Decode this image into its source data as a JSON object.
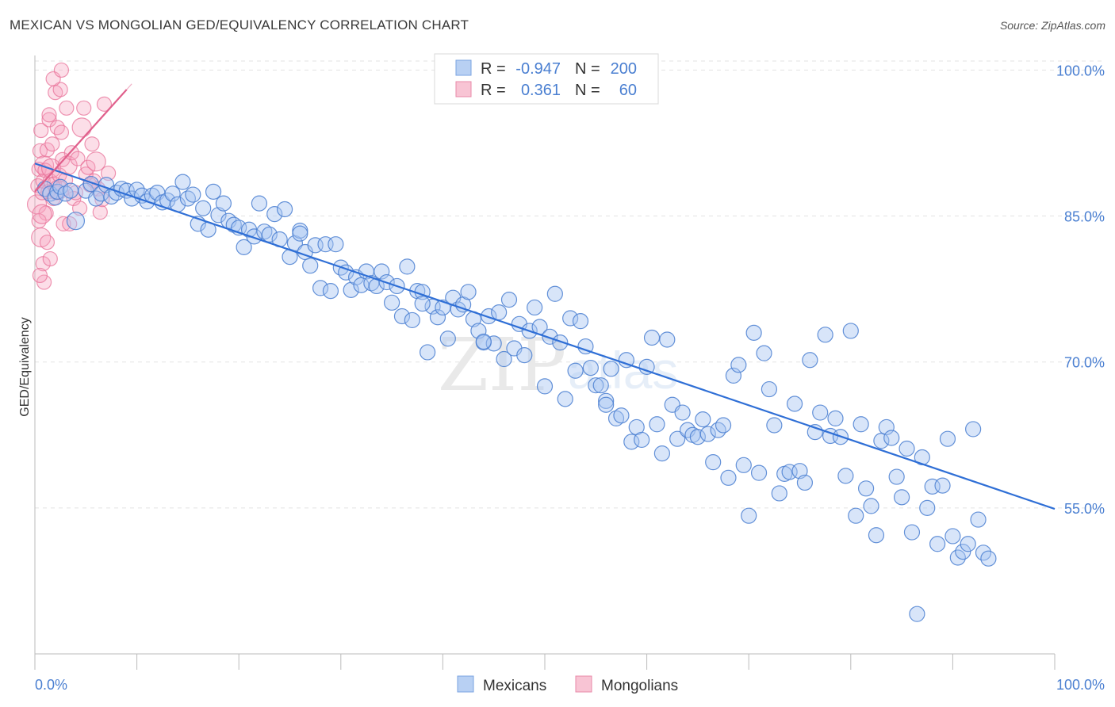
{
  "header": {
    "title": "MEXICAN VS MONGOLIAN GED/EQUIVALENCY CORRELATION CHART",
    "source": "Source: ZipAtlas.com"
  },
  "watermark": {
    "zip": "ZIP",
    "atlas": "atlas"
  },
  "colors": {
    "blue": "#4a7fd1",
    "blue_fill": "#a9c6f2",
    "blue_line": "#2f6fd6",
    "pink": "#e8739a",
    "pink_fill": "#f6b6cb",
    "pink_line": "#e0608c",
    "grid": "#e3e3e3"
  },
  "legend": {
    "rows": [
      {
        "r_label": "R =",
        "r_value": "-0.947",
        "n_label": "N =",
        "n_value": "200"
      },
      {
        "r_label": "R =",
        "r_value": " 0.361",
        "n_label": "N =",
        "n_value": " 60"
      }
    ]
  },
  "bottom_legend": [
    "Mexicans",
    "Mongolians"
  ],
  "chart_data": {
    "type": "scatter",
    "title": "MEXICAN VS MONGOLIAN GED/EQUIVALENCY CORRELATION CHART",
    "xlabel": "",
    "ylabel": "GED/Equivalency",
    "xlim": [
      0,
      100
    ],
    "ylim": [
      40,
      101.5
    ],
    "x_tick_labels": [
      "0.0%",
      "100.0%"
    ],
    "y_ticks": [
      55,
      70,
      85,
      100
    ],
    "y_tick_labels": [
      "55.0%",
      "70.0%",
      "85.0%",
      "100.0%"
    ],
    "grid": true,
    "legend_position": "top-center",
    "series": [
      {
        "name": "Mexicans",
        "r": -0.947,
        "n": 200,
        "trend": {
          "x": [
            0,
            100
          ],
          "y": [
            90.4,
            54.9
          ]
        },
        "points": [
          [
            1,
            87.8
          ],
          [
            1.5,
            87.3
          ],
          [
            2,
            86.9
          ],
          [
            2.2,
            87.5
          ],
          [
            2.5,
            88
          ],
          [
            3,
            87.3
          ],
          [
            3.5,
            87.6
          ],
          [
            4,
            84.5
          ],
          [
            5,
            87.6
          ],
          [
            5.5,
            88.3
          ],
          [
            6,
            86.8
          ],
          [
            6.5,
            87.3
          ],
          [
            7,
            88.2
          ],
          [
            7.5,
            87
          ],
          [
            8,
            87.4
          ],
          [
            8.5,
            87.8
          ],
          [
            9,
            87.6
          ],
          [
            9.5,
            86.8
          ],
          [
            10,
            87.7
          ],
          [
            10.5,
            87.1
          ],
          [
            11,
            86.5
          ],
          [
            11.5,
            87.1
          ],
          [
            12,
            87.4
          ],
          [
            12.5,
            86.4
          ],
          [
            13,
            86.6
          ],
          [
            13.5,
            87.3
          ],
          [
            14,
            86.2
          ],
          [
            14.5,
            88.5
          ],
          [
            15,
            86.8
          ],
          [
            15.5,
            87.2
          ],
          [
            16,
            84.2
          ],
          [
            16.5,
            85.8
          ],
          [
            17,
            83.6
          ],
          [
            17.5,
            87.5
          ],
          [
            18,
            85.1
          ],
          [
            18.5,
            86.3
          ],
          [
            19,
            84.5
          ],
          [
            19.5,
            84.1
          ],
          [
            20,
            83.8
          ],
          [
            20.5,
            81.8
          ],
          [
            21,
            83.6
          ],
          [
            21.5,
            82.9
          ],
          [
            22,
            86.3
          ],
          [
            22.5,
            83.4
          ],
          [
            23,
            83.1
          ],
          [
            23.5,
            85.2
          ],
          [
            24,
            82.6
          ],
          [
            24.5,
            85.7
          ],
          [
            25,
            80.8
          ],
          [
            25.5,
            82.2
          ],
          [
            26,
            83.5
          ],
          [
            26.5,
            81.3
          ],
          [
            27,
            79.9
          ],
          [
            27.5,
            82
          ],
          [
            28,
            77.6
          ],
          [
            28.5,
            82.1
          ],
          [
            29,
            77.3
          ],
          [
            29.5,
            82.1
          ],
          [
            30,
            79.7
          ],
          [
            30.5,
            79.2
          ],
          [
            31,
            77.4
          ],
          [
            31.5,
            78.7
          ],
          [
            32,
            77.9
          ],
          [
            32.5,
            79.3
          ],
          [
            33,
            78.1
          ],
          [
            33.5,
            77.8
          ],
          [
            34,
            79.3
          ],
          [
            34.5,
            78.2
          ],
          [
            35,
            76.1
          ],
          [
            35.5,
            77.8
          ],
          [
            36,
            74.7
          ],
          [
            36.5,
            79.8
          ],
          [
            37,
            74.3
          ],
          [
            37.5,
            77.3
          ],
          [
            38,
            77.2
          ],
          [
            38.5,
            71
          ],
          [
            39,
            75.7
          ],
          [
            39.5,
            74.6
          ],
          [
            40,
            75.6
          ],
          [
            40.5,
            72.4
          ],
          [
            41,
            76.6
          ],
          [
            41.5,
            75.4
          ],
          [
            42,
            75.9
          ],
          [
            42.5,
            77.2
          ],
          [
            43,
            74.4
          ],
          [
            43.5,
            73.2
          ],
          [
            44,
            72
          ],
          [
            44.5,
            74.7
          ],
          [
            45,
            71.9
          ],
          [
            45.5,
            75.1
          ],
          [
            46,
            70.3
          ],
          [
            46.5,
            76.4
          ],
          [
            47,
            71.4
          ],
          [
            47.5,
            73.9
          ],
          [
            48,
            70.7
          ],
          [
            48.5,
            73.2
          ],
          [
            49,
            75.6
          ],
          [
            49.5,
            73.6
          ],
          [
            50,
            67.5
          ],
          [
            50.5,
            72.6
          ],
          [
            51,
            77
          ],
          [
            51.5,
            72
          ],
          [
            52,
            66.2
          ],
          [
            52.5,
            74.5
          ],
          [
            53,
            69.1
          ],
          [
            53.5,
            74.2
          ],
          [
            54,
            71.6
          ],
          [
            54.5,
            69.4
          ],
          [
            55,
            67.6
          ],
          [
            55.5,
            67.6
          ],
          [
            56,
            66
          ],
          [
            56.5,
            69.3
          ],
          [
            57,
            64.2
          ],
          [
            57.5,
            64.5
          ],
          [
            58,
            70.2
          ],
          [
            58.5,
            61.8
          ],
          [
            59,
            63.3
          ],
          [
            59.5,
            62
          ],
          [
            60,
            69.5
          ],
          [
            60.5,
            72.5
          ],
          [
            61,
            63.6
          ],
          [
            61.5,
            60.6
          ],
          [
            62,
            72.3
          ],
          [
            62.5,
            65.6
          ],
          [
            63,
            62.1
          ],
          [
            63.5,
            64.8
          ],
          [
            64,
            63
          ],
          [
            64.5,
            62.5
          ],
          [
            65,
            62.3
          ],
          [
            65.5,
            64.1
          ],
          [
            66,
            62.6
          ],
          [
            66.5,
            59.7
          ],
          [
            67,
            63
          ],
          [
            67.5,
            63.5
          ],
          [
            68,
            58.1
          ],
          [
            68.5,
            68.6
          ],
          [
            69,
            69.7
          ],
          [
            69.5,
            59.4
          ],
          [
            70,
            54.2
          ],
          [
            70.5,
            73
          ],
          [
            71,
            58.6
          ],
          [
            71.5,
            70.9
          ],
          [
            72,
            67.2
          ],
          [
            72.5,
            63.5
          ],
          [
            73,
            56.5
          ],
          [
            73.5,
            58.5
          ],
          [
            74,
            58.7
          ],
          [
            74.5,
            65.7
          ],
          [
            75,
            58.8
          ],
          [
            75.5,
            57.6
          ],
          [
            76,
            70.2
          ],
          [
            76.5,
            62.8
          ],
          [
            77,
            64.8
          ],
          [
            77.5,
            72.8
          ],
          [
            78,
            62.4
          ],
          [
            78.5,
            64.2
          ],
          [
            79,
            62.3
          ],
          [
            79.5,
            58.3
          ],
          [
            80,
            73.2
          ],
          [
            80.5,
            54.2
          ],
          [
            81,
            63.6
          ],
          [
            81.5,
            57
          ],
          [
            82,
            55.2
          ],
          [
            82.5,
            52.2
          ],
          [
            83,
            61.9
          ],
          [
            83.5,
            63.3
          ],
          [
            84,
            62.2
          ],
          [
            84.5,
            58.2
          ],
          [
            85,
            56.1
          ],
          [
            85.5,
            61.1
          ],
          [
            86,
            52.5
          ],
          [
            86.5,
            44.1
          ],
          [
            87,
            60.2
          ],
          [
            87.5,
            55
          ],
          [
            88,
            57.2
          ],
          [
            88.5,
            51.3
          ],
          [
            89,
            57.3
          ],
          [
            89.5,
            62.1
          ],
          [
            90,
            52.1
          ],
          [
            90.5,
            49.9
          ],
          [
            91,
            50.5
          ],
          [
            91.5,
            51.3
          ],
          [
            92,
            63.1
          ],
          [
            92.5,
            53.8
          ],
          [
            93,
            50.4
          ],
          [
            93.5,
            49.8
          ],
          [
            26,
            83.2
          ],
          [
            38,
            76
          ],
          [
            44,
            72.1
          ],
          [
            56,
            65.6
          ]
        ]
      },
      {
        "name": "Mongolians",
        "r": 0.361,
        "n": 60,
        "trend": {
          "x": [
            0,
            9.0
          ],
          "y": [
            87.5,
            98.0
          ]
        },
        "points": [
          [
            0.2,
            86.2
          ],
          [
            0.3,
            88.1
          ],
          [
            0.4,
            89.8
          ],
          [
            0.5,
            91.7
          ],
          [
            0.6,
            93.8
          ],
          [
            0.7,
            87.4
          ],
          [
            0.8,
            88.6
          ],
          [
            0.9,
            90.2
          ],
          [
            1,
            89.7
          ],
          [
            1.1,
            85.3
          ],
          [
            1.2,
            91.8
          ],
          [
            1.3,
            87.5
          ],
          [
            1.4,
            94.9
          ],
          [
            1.5,
            88.6
          ],
          [
            1.6,
            89.9
          ],
          [
            1.7,
            92.4
          ],
          [
            1.8,
            86.8
          ],
          [
            1.9,
            88.3
          ],
          [
            2,
            97.7
          ],
          [
            2.1,
            87.4
          ],
          [
            2.2,
            94.1
          ],
          [
            2.3,
            87.7
          ],
          [
            2.4,
            89.2
          ],
          [
            2.5,
            98
          ],
          [
            2.6,
            93.6
          ],
          [
            2.7,
            90.8
          ],
          [
            2.8,
            84.2
          ],
          [
            3,
            88.7
          ],
          [
            3.2,
            90.2
          ],
          [
            3.4,
            84.2
          ],
          [
            3.6,
            91.5
          ],
          [
            3.8,
            86.8
          ],
          [
            4,
            87.4
          ],
          [
            4.2,
            90.9
          ],
          [
            4.4,
            85.8
          ],
          [
            4.6,
            94.1
          ],
          [
            4.8,
            96.1
          ],
          [
            5,
            89.3
          ],
          [
            5.2,
            90
          ],
          [
            5.4,
            88.2
          ],
          [
            5.6,
            92.4
          ],
          [
            5.8,
            88.6
          ],
          [
            6,
            90.6
          ],
          [
            6.2,
            87.8
          ],
          [
            6.4,
            85.4
          ],
          [
            6.6,
            86.7
          ],
          [
            1.8,
            99.1
          ],
          [
            2.6,
            100
          ],
          [
            3.1,
            96.1
          ],
          [
            0.6,
            82.8
          ],
          [
            0.8,
            80.1
          ],
          [
            0.9,
            78.2
          ],
          [
            1.5,
            80.6
          ],
          [
            0.5,
            78.9
          ],
          [
            1.2,
            82.3
          ],
          [
            0.4,
            84.5
          ],
          [
            0.7,
            85.2
          ],
          [
            6.8,
            96.5
          ],
          [
            7.2,
            89.4
          ],
          [
            1.4,
            95.4
          ]
        ]
      }
    ]
  }
}
